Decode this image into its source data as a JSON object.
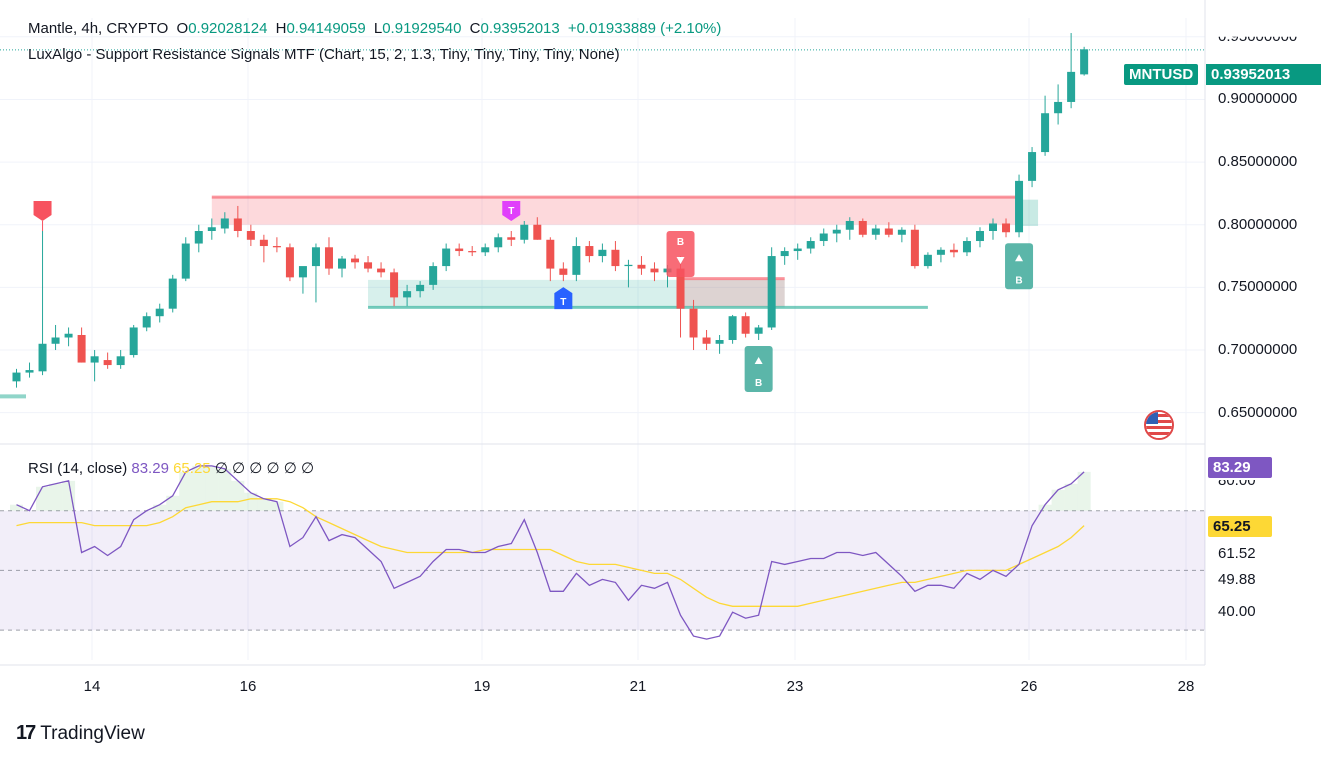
{
  "legend_main": {
    "symbol": "Mantle, 4h, CRYPTO",
    "o_label": "O",
    "o_value": "0.92028124",
    "h_label": "H",
    "h_value": "0.94149059",
    "l_label": "L",
    "l_value": "0.91929540",
    "c_label": "C",
    "c_value": "0.93952013",
    "change": "+0.01933889 (+2.10%)"
  },
  "legend_indicator": "LuxAlgo - Support Resistance Signals MTF (Chart, 15, 2, 1.3, Tiny, Tiny, Tiny, Tiny, None)",
  "legend_rsi": {
    "name": "RSI (14, close)",
    "rsi_value": "83.29",
    "ma_value": "65.25",
    "empties": "∅ ∅ ∅ ∅ ∅ ∅"
  },
  "price_tag": {
    "symbol": "MNTUSD",
    "value": "0.93952013"
  },
  "price_axis": [
    "0.95000000",
    "0.90000000",
    "0.85000000",
    "0.80000000",
    "0.75000000",
    "0.70000000",
    "0.65000000"
  ],
  "rsi_axis": {
    "rsi_tag": "83.29",
    "ma_tag": "65.25",
    "labels": [
      "80.00",
      "61.52",
      "49.88",
      "40.00"
    ]
  },
  "x_axis": [
    "14",
    "16",
    "19",
    "21",
    "23",
    "26",
    "28"
  ],
  "brand": "TradingView",
  "colors": {
    "up": "#26a69a",
    "down": "#ef5350",
    "rsi": "#7e57c2",
    "rsi_ma": "#fdd835",
    "resistance": "#f7525f",
    "support": "#22ab94",
    "top_signal": "#e040fb",
    "support_signal": "#2962ff"
  },
  "chart_data": [
    {
      "type": "candlestick",
      "title": "Mantle, 4h, CRYPTO",
      "y_axis": {
        "min": 0.625,
        "max": 0.965,
        "ticks": [
          0.65,
          0.7,
          0.75,
          0.8,
          0.85,
          0.9,
          0.95
        ]
      },
      "x_ticks": [
        "14",
        "16",
        "19",
        "21",
        "23",
        "26",
        "28"
      ],
      "candles": [
        [
          0.675,
          0.685,
          0.67,
          0.682
        ],
        [
          0.682,
          0.69,
          0.678,
          0.684
        ],
        [
          0.683,
          0.795,
          0.68,
          0.705
        ],
        [
          0.705,
          0.72,
          0.7,
          0.71
        ],
        [
          0.71,
          0.718,
          0.703,
          0.713
        ],
        [
          0.712,
          0.718,
          0.69,
          0.69
        ],
        [
          0.69,
          0.7,
          0.675,
          0.695
        ],
        [
          0.692,
          0.698,
          0.685,
          0.688
        ],
        [
          0.688,
          0.7,
          0.685,
          0.695
        ],
        [
          0.696,
          0.72,
          0.694,
          0.718
        ],
        [
          0.718,
          0.73,
          0.715,
          0.727
        ],
        [
          0.727,
          0.737,
          0.722,
          0.733
        ],
        [
          0.733,
          0.76,
          0.73,
          0.757
        ],
        [
          0.757,
          0.79,
          0.755,
          0.785
        ],
        [
          0.785,
          0.8,
          0.778,
          0.795
        ],
        [
          0.795,
          0.805,
          0.788,
          0.798
        ],
        [
          0.797,
          0.81,
          0.793,
          0.805
        ],
        [
          0.805,
          0.815,
          0.79,
          0.795
        ],
        [
          0.795,
          0.8,
          0.783,
          0.788
        ],
        [
          0.788,
          0.792,
          0.77,
          0.783
        ],
        [
          0.783,
          0.79,
          0.778,
          0.782
        ],
        [
          0.782,
          0.785,
          0.755,
          0.758
        ],
        [
          0.758,
          0.765,
          0.745,
          0.767
        ],
        [
          0.767,
          0.785,
          0.738,
          0.782
        ],
        [
          0.782,
          0.79,
          0.76,
          0.765
        ],
        [
          0.765,
          0.775,
          0.758,
          0.773
        ],
        [
          0.773,
          0.776,
          0.765,
          0.77
        ],
        [
          0.77,
          0.775,
          0.762,
          0.765
        ],
        [
          0.765,
          0.77,
          0.758,
          0.762
        ],
        [
          0.762,
          0.765,
          0.735,
          0.742
        ],
        [
          0.742,
          0.752,
          0.735,
          0.747
        ],
        [
          0.747,
          0.755,
          0.742,
          0.752
        ],
        [
          0.752,
          0.77,
          0.748,
          0.767
        ],
        [
          0.767,
          0.785,
          0.763,
          0.781
        ],
        [
          0.781,
          0.785,
          0.775,
          0.779
        ],
        [
          0.779,
          0.783,
          0.775,
          0.778
        ],
        [
          0.778,
          0.785,
          0.775,
          0.782
        ],
        [
          0.782,
          0.793,
          0.778,
          0.79
        ],
        [
          0.79,
          0.795,
          0.783,
          0.788
        ],
        [
          0.788,
          0.803,
          0.785,
          0.8
        ],
        [
          0.8,
          0.806,
          0.788,
          0.788
        ],
        [
          0.788,
          0.79,
          0.755,
          0.765
        ],
        [
          0.765,
          0.77,
          0.755,
          0.76
        ],
        [
          0.76,
          0.79,
          0.755,
          0.783
        ],
        [
          0.783,
          0.787,
          0.77,
          0.775
        ],
        [
          0.775,
          0.785,
          0.77,
          0.78
        ],
        [
          0.78,
          0.787,
          0.763,
          0.767
        ],
        [
          0.767,
          0.772,
          0.75,
          0.768
        ],
        [
          0.768,
          0.775,
          0.76,
          0.765
        ],
        [
          0.765,
          0.77,
          0.755,
          0.762
        ],
        [
          0.762,
          0.768,
          0.75,
          0.765
        ],
        [
          0.765,
          0.775,
          0.71,
          0.733
        ],
        [
          0.733,
          0.74,
          0.7,
          0.71
        ],
        [
          0.71,
          0.716,
          0.7,
          0.705
        ],
        [
          0.705,
          0.712,
          0.697,
          0.708
        ],
        [
          0.708,
          0.728,
          0.705,
          0.727
        ],
        [
          0.727,
          0.73,
          0.71,
          0.713
        ],
        [
          0.713,
          0.72,
          0.708,
          0.718
        ],
        [
          0.718,
          0.782,
          0.716,
          0.775
        ],
        [
          0.775,
          0.782,
          0.768,
          0.779
        ],
        [
          0.779,
          0.785,
          0.772,
          0.781
        ],
        [
          0.781,
          0.79,
          0.777,
          0.787
        ],
        [
          0.787,
          0.797,
          0.783,
          0.793
        ],
        [
          0.793,
          0.8,
          0.786,
          0.796
        ],
        [
          0.796,
          0.806,
          0.788,
          0.803
        ],
        [
          0.803,
          0.805,
          0.79,
          0.792
        ],
        [
          0.792,
          0.8,
          0.788,
          0.797
        ],
        [
          0.797,
          0.802,
          0.79,
          0.792
        ],
        [
          0.792,
          0.798,
          0.786,
          0.796
        ],
        [
          0.796,
          0.8,
          0.765,
          0.767
        ],
        [
          0.767,
          0.778,
          0.765,
          0.776
        ],
        [
          0.776,
          0.782,
          0.77,
          0.78
        ],
        [
          0.78,
          0.785,
          0.774,
          0.778
        ],
        [
          0.778,
          0.79,
          0.775,
          0.787
        ],
        [
          0.787,
          0.798,
          0.782,
          0.795
        ],
        [
          0.795,
          0.805,
          0.788,
          0.801
        ],
        [
          0.801,
          0.805,
          0.79,
          0.794
        ],
        [
          0.794,
          0.84,
          0.79,
          0.835
        ],
        [
          0.835,
          0.862,
          0.83,
          0.858
        ],
        [
          0.858,
          0.903,
          0.855,
          0.889
        ],
        [
          0.889,
          0.912,
          0.88,
          0.898
        ],
        [
          0.898,
          0.953,
          0.893,
          0.922
        ],
        [
          0.92,
          0.942,
          0.919,
          0.94
        ]
      ],
      "resistance_zone": {
        "from_bar": 15,
        "to_bar": 77,
        "upper": 0.822,
        "lower": 0.8
      },
      "support_zone": {
        "from_bar": 27,
        "to_bar": 59,
        "upper": 0.756,
        "lower": 0.734
      },
      "support_line": {
        "from_bar": 27,
        "to_bar": 70,
        "value": 0.734
      },
      "small_resistance": {
        "from_bar": 51,
        "to_bar": 59,
        "value": 0.757
      },
      "breakout_zone": {
        "from_bar": 77,
        "to_bar": 78,
        "upper": 0.82,
        "lower": 0.799
      },
      "signals": [
        {
          "label": "T",
          "bar": 2,
          "type": "top"
        },
        {
          "label": "T",
          "bar": 38,
          "type": "top"
        },
        {
          "label": "T",
          "bar": 42,
          "type": "support"
        },
        {
          "label": "B",
          "bar": 51,
          "type": "break_down"
        },
        {
          "label": "B",
          "bar": 57,
          "type": "break_up"
        },
        {
          "label": "B",
          "bar": 77,
          "type": "break_up"
        }
      ],
      "last_price": 0.93952013
    },
    {
      "type": "line",
      "title": "RSI (14, close)",
      "y_axis": {
        "min": 20,
        "max": 92,
        "bands": [
          30,
          50,
          70
        ]
      },
      "series": [
        {
          "name": "RSI",
          "values": [
            72,
            70,
            78,
            79,
            80,
            56,
            58,
            55,
            58,
            67,
            70,
            72,
            75,
            83,
            85,
            85,
            84,
            80,
            76,
            74,
            73,
            58,
            61,
            68,
            60,
            62,
            61,
            57,
            53,
            44,
            46,
            48,
            53,
            57,
            57,
            56,
            56,
            58,
            59,
            67,
            56,
            43,
            43,
            49,
            45,
            47,
            46,
            40,
            45,
            44,
            46,
            35,
            28,
            27,
            28,
            36,
            34,
            35,
            53,
            52,
            53,
            54,
            54,
            56,
            56,
            55,
            56,
            52,
            48,
            43,
            45,
            45,
            44,
            49,
            47,
            50,
            48,
            52,
            65,
            72,
            77,
            79,
            83
          ]
        },
        {
          "name": "RSI-based MA",
          "values": [
            65,
            66,
            66,
            66,
            66,
            66,
            65,
            65,
            65,
            65,
            65,
            66,
            68,
            71,
            72,
            73,
            73,
            73,
            74,
            74,
            74,
            73,
            71,
            68,
            66,
            64,
            62,
            60,
            58,
            57,
            56,
            56,
            56,
            56,
            56,
            56,
            57,
            57,
            57,
            57,
            57,
            57,
            55,
            53,
            52,
            52,
            52,
            51,
            50,
            49,
            49,
            47,
            44,
            41,
            39,
            38,
            38,
            38,
            38,
            38,
            38,
            39,
            40,
            41,
            42,
            43,
            44,
            45,
            46,
            46,
            47,
            48,
            49,
            50,
            50,
            50,
            50,
            52,
            54,
            56,
            58,
            61,
            65
          ]
        }
      ]
    }
  ]
}
